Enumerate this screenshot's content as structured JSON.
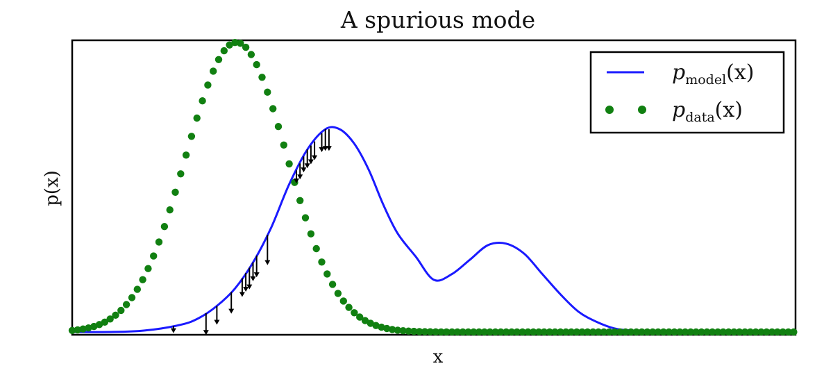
{
  "chart_data": {
    "type": "line",
    "title": "A spurious mode",
    "xlabel": "x",
    "ylabel": "p(x)",
    "xlim": [
      0,
      10
    ],
    "ylim": [
      0,
      1.0
    ],
    "grid": false,
    "ticks": "none",
    "legend": {
      "placement": "top-right"
    },
    "colors": {
      "model": "#1a1aff",
      "data": "#118011",
      "arrows": "#000000",
      "frame": "#000000"
    },
    "series": [
      {
        "key": "model",
        "name_main": "p",
        "name_sub": "model",
        "name_tail": "(x)",
        "style": "solid-line",
        "x": [
          0,
          0.5,
          1.0,
          1.5,
          1.75,
          2.0,
          2.25,
          2.5,
          2.75,
          3.0,
          3.25,
          3.5,
          3.7,
          3.9,
          4.1,
          4.3,
          4.5,
          4.75,
          5.0,
          5.25,
          5.5,
          5.75,
          6.0,
          6.25,
          6.5,
          6.75,
          7.0,
          7.25,
          7.5,
          7.75,
          8.0,
          8.25,
          8.5,
          8.75,
          9.0,
          9.5,
          10.0
        ],
        "y": [
          0.0,
          0.0,
          0.005,
          0.025,
          0.048,
          0.09,
          0.15,
          0.24,
          0.36,
          0.51,
          0.63,
          0.7,
          0.7,
          0.65,
          0.56,
          0.44,
          0.34,
          0.26,
          0.18,
          0.2,
          0.25,
          0.3,
          0.305,
          0.27,
          0.2,
          0.13,
          0.07,
          0.035,
          0.012,
          0.005,
          0.002,
          0.0,
          0.0,
          0.0,
          0.0,
          0.0,
          0.0
        ]
      },
      {
        "key": "data",
        "name_main": "p",
        "name_sub": "data",
        "name_tail": "(x)",
        "style": "dots",
        "gaussian": {
          "mean": 2.27,
          "sd": 0.7,
          "peak": 1.0
        },
        "x_from": 0.0,
        "x_to": 10.0,
        "dot_step": 0.075
      }
    ],
    "arrows": {
      "description_free": true,
      "x": [
        1.4,
        1.85,
        2.0,
        2.2,
        2.35,
        2.4,
        2.45,
        2.5,
        2.55,
        2.7,
        3.1,
        3.15,
        3.2,
        3.25,
        3.3,
        3.35,
        3.45,
        3.5,
        3.55
      ],
      "dy": [
        -0.02,
        -0.07,
        -0.06,
        -0.07,
        -0.06,
        -0.06,
        -0.07,
        -0.06,
        -0.07,
        -0.1,
        -0.04,
        -0.05,
        -0.05,
        -0.06,
        -0.06,
        -0.06,
        -0.06,
        -0.07,
        -0.07
      ]
    }
  }
}
